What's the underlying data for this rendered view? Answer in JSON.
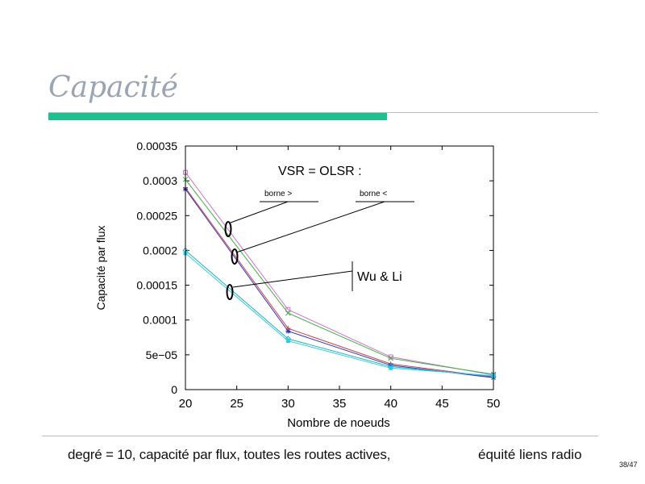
{
  "slide": {
    "title": "Capacité",
    "caption_left": "degré = 10, capacité par flux, toutes les routes actives,",
    "caption_right": "équité liens radio",
    "page_number": "38/47"
  },
  "chart_data": {
    "type": "line",
    "title": "",
    "xlabel": "Nombre de noeuds",
    "ylabel": "Capacité par flux",
    "xlim": [
      20,
      50
    ],
    "ylim": [
      0,
      0.00035
    ],
    "xticks": [
      20,
      25,
      30,
      35,
      40,
      45,
      50
    ],
    "xtick_labels": [
      "20",
      "25",
      "30",
      "35",
      "40",
      "45",
      "50"
    ],
    "yticks": [
      0,
      5e-05,
      0.0001,
      0.00015,
      0.0002,
      0.00025,
      0.0003,
      0.00035
    ],
    "ytick_labels": [
      "0",
      "5e−05",
      "0.0001",
      "0.00015",
      "0.0002",
      "0.00025",
      "0.0003",
      "0.00035"
    ],
    "grid": false,
    "x": [
      20,
      30,
      40,
      50
    ],
    "series": [
      {
        "values": [
          0.000312,
          0.000115,
          4.7e-05,
          2.1e-05
        ],
        "color": "#d070d0",
        "marker": "square"
      },
      {
        "values": [
          0.000302,
          0.00011,
          4.5e-05,
          2.2e-05
        ],
        "color": "#40b040",
        "marker": "x"
      },
      {
        "values": [
          0.00029,
          8.8e-05,
          3.7e-05,
          1.8e-05
        ],
        "color": "#d04040",
        "marker": "plus"
      },
      {
        "values": [
          0.000288,
          8.4e-05,
          3.5e-05,
          1.7e-05
        ],
        "color": "#3030c0",
        "marker": "star"
      },
      {
        "values": [
          0.0002,
          7.3e-05,
          3.3e-05,
          1.9e-05
        ],
        "color": "#30b0b0",
        "marker": "diamond"
      },
      {
        "values": [
          0.000196,
          7e-05,
          3.1e-05,
          2e-05
        ],
        "color": "#20d0f0",
        "marker": "filled-square"
      }
    ],
    "annotations": {
      "main": "VSR = OLSR :",
      "borne_upper": "borne  >",
      "borne_lower": "borne  <",
      "wu_li": "Wu & Li"
    }
  }
}
